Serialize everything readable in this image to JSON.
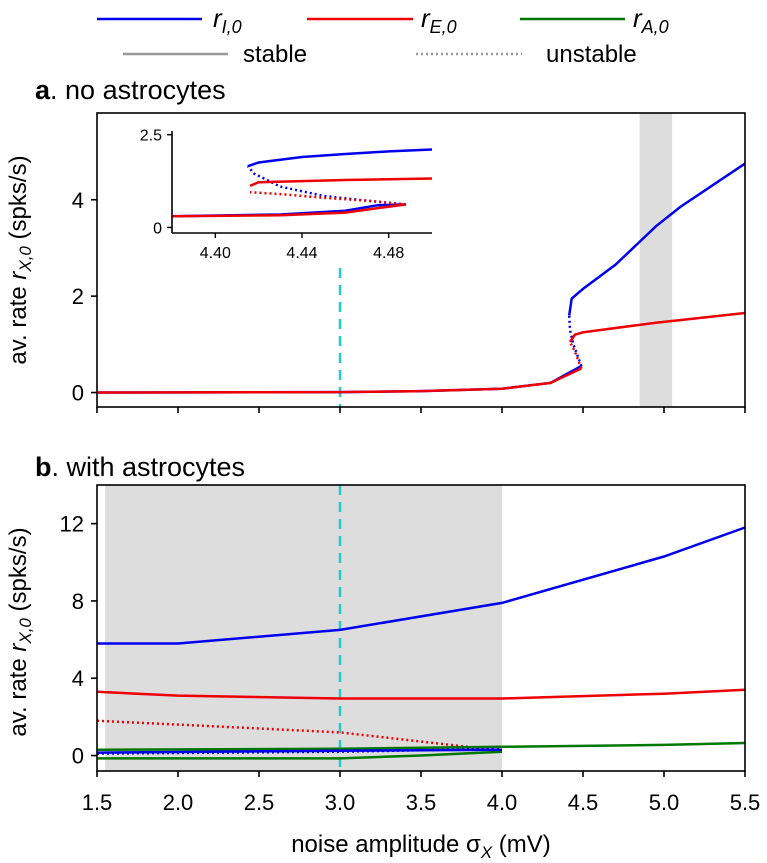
{
  "legend": {
    "items": [
      {
        "sym": "r",
        "sub": "I,0",
        "color": "#0000ee"
      },
      {
        "sym": "r",
        "sub": "E,0",
        "color": "#ee0000"
      },
      {
        "sym": "r",
        "sub": "A,0",
        "color": "#007700"
      }
    ],
    "stable": "stable",
    "unstable": "unstable"
  },
  "x_axis": {
    "label": "noise amplitude σ",
    "label_sub": "X",
    "label_unit": " (mV)",
    "ticks": [
      "1.5",
      "2.0",
      "2.5",
      "3.0",
      "3.5",
      "4.0",
      "4.5",
      "5.0",
      "5.5"
    ]
  },
  "y_axis": {
    "prefix": "av. rate ",
    "sym": "r",
    "sub": "X,0",
    "unit": " (spks/s)"
  },
  "chart_data": [
    {
      "id": "a",
      "type": "line",
      "panel_letter": "a",
      "title": ". no astrocytes",
      "xlim": [
        1.5,
        5.5
      ],
      "ylim": [
        -0.3,
        5.8
      ],
      "yticks": [
        "0",
        "2",
        "4"
      ],
      "highlight_band": [
        4.85,
        5.05
      ],
      "reference_x": 3.0,
      "series": [
        {
          "name": "r_I,0",
          "color": "#0000ee",
          "style": "solid",
          "points": [
            [
              1.5,
              0.0
            ],
            [
              3.0,
              0.01
            ],
            [
              3.5,
              0.03
            ],
            [
              4.0,
              0.08
            ],
            [
              4.3,
              0.2
            ],
            [
              4.49,
              0.55
            ]
          ]
        },
        {
          "name": "r_E,0",
          "color": "#ee0000",
          "style": "solid",
          "points": [
            [
              1.5,
              0.0
            ],
            [
              3.0,
              0.01
            ],
            [
              3.5,
              0.03
            ],
            [
              4.0,
              0.08
            ],
            [
              4.3,
              0.2
            ],
            [
              4.49,
              0.5
            ]
          ]
        },
        {
          "name": "r_I,0",
          "color": "#0000ee",
          "style": "dotted",
          "points": [
            [
              4.49,
              0.55
            ],
            [
              4.44,
              1.0
            ],
            [
              4.42,
              1.3
            ],
            [
              4.415,
              1.6
            ]
          ]
        },
        {
          "name": "r_E,0",
          "color": "#ee0000",
          "style": "dotted",
          "points": [
            [
              4.49,
              0.5
            ],
            [
              4.45,
              0.85
            ],
            [
              4.42,
              1.05
            ]
          ]
        },
        {
          "name": "r_I,0",
          "color": "#0000ee",
          "style": "solid",
          "points": [
            [
              4.415,
              1.6
            ],
            [
              4.43,
              1.95
            ],
            [
              4.5,
              2.15
            ],
            [
              4.7,
              2.65
            ],
            [
              4.95,
              3.45
            ],
            [
              5.1,
              3.85
            ],
            [
              5.5,
              4.75
            ]
          ]
        },
        {
          "name": "r_E,0",
          "color": "#ee0000",
          "style": "solid",
          "points": [
            [
              4.42,
              1.05
            ],
            [
              4.43,
              1.1
            ],
            [
              4.45,
              1.2
            ],
            [
              4.5,
              1.25
            ],
            [
              4.95,
              1.45
            ],
            [
              5.5,
              1.65
            ]
          ]
        }
      ],
      "inset": {
        "xlim": [
          4.38,
          4.5
        ],
        "ylim": [
          -0.15,
          2.6
        ],
        "xticks": [
          "4.40",
          "4.44",
          "4.48"
        ],
        "xtick_values": [
          4.4,
          4.44,
          4.48
        ],
        "yticks": [
          "0",
          "2.5"
        ],
        "ytick_values": [
          0,
          2.5
        ],
        "series": [
          {
            "name": "r_I,0",
            "color": "#0000ee",
            "style": "solid",
            "points": [
              [
                4.38,
                0.3
              ],
              [
                4.43,
                0.35
              ],
              [
                4.46,
                0.45
              ],
              [
                4.475,
                0.6
              ],
              [
                4.488,
                0.62
              ]
            ]
          },
          {
            "name": "r_E,0",
            "color": "#ee0000",
            "style": "solid",
            "points": [
              [
                4.38,
                0.3
              ],
              [
                4.43,
                0.33
              ],
              [
                4.46,
                0.4
              ],
              [
                4.475,
                0.52
              ],
              [
                4.488,
                0.62
              ]
            ]
          },
          {
            "name": "r_I,0",
            "color": "#0000ee",
            "style": "dotted",
            "points": [
              [
                4.488,
                0.62
              ],
              [
                4.47,
                0.72
              ],
              [
                4.45,
                0.85
              ],
              [
                4.43,
                1.1
              ],
              [
                4.418,
                1.45
              ],
              [
                4.415,
                1.65
              ]
            ]
          },
          {
            "name": "r_E,0",
            "color": "#ee0000",
            "style": "dotted",
            "points": [
              [
                4.488,
                0.62
              ],
              [
                4.47,
                0.72
              ],
              [
                4.45,
                0.8
              ],
              [
                4.43,
                0.9
              ],
              [
                4.416,
                0.95
              ]
            ]
          },
          {
            "name": "r_I,0",
            "color": "#0000ee",
            "style": "solid",
            "points": [
              [
                4.415,
                1.65
              ],
              [
                4.42,
                1.75
              ],
              [
                4.44,
                1.9
              ],
              [
                4.46,
                1.98
              ],
              [
                4.48,
                2.05
              ],
              [
                4.5,
                2.1
              ]
            ]
          },
          {
            "name": "r_E,0",
            "color": "#ee0000",
            "style": "solid",
            "points": [
              [
                4.416,
                1.12
              ],
              [
                4.42,
                1.22
              ],
              [
                4.44,
                1.25
              ],
              [
                4.46,
                1.28
              ],
              [
                4.48,
                1.3
              ],
              [
                4.5,
                1.32
              ]
            ]
          }
        ]
      }
    },
    {
      "id": "b",
      "type": "line",
      "panel_letter": "b",
      "title": ". with astrocytes",
      "xlim": [
        1.5,
        5.5
      ],
      "ylim": [
        -0.8,
        14.0
      ],
      "yticks": [
        "0",
        "4",
        "8",
        "12"
      ],
      "ytick_values": [
        0,
        4,
        8,
        12
      ],
      "highlight_band": [
        1.55,
        4.0
      ],
      "reference_x": 3.0,
      "series": [
        {
          "name": "r_I,0",
          "color": "#0000ee",
          "style": "solid",
          "points": [
            [
              1.5,
              5.8
            ],
            [
              2.0,
              5.8
            ],
            [
              3.0,
              6.5
            ],
            [
              4.0,
              7.9
            ],
            [
              5.0,
              10.3
            ],
            [
              5.5,
              11.8
            ]
          ]
        },
        {
          "name": "r_E,0",
          "color": "#ee0000",
          "style": "solid",
          "points": [
            [
              1.5,
              3.3
            ],
            [
              2.0,
              3.1
            ],
            [
              3.0,
              2.95
            ],
            [
              4.0,
              2.95
            ],
            [
              5.0,
              3.2
            ],
            [
              5.5,
              3.4
            ]
          ]
        },
        {
          "name": "r_E,0",
          "color": "#ee0000",
          "style": "dotted",
          "points": [
            [
              1.5,
              1.8
            ],
            [
              2.0,
              1.6
            ],
            [
              3.0,
              1.2
            ],
            [
              4.0,
              0.25
            ]
          ]
        },
        {
          "name": "r_A,0",
          "color": "#007700",
          "style": "solid",
          "points": [
            [
              1.5,
              0.3
            ],
            [
              3.0,
              0.35
            ],
            [
              4.0,
              0.45
            ],
            [
              5.0,
              0.55
            ],
            [
              5.5,
              0.65
            ]
          ]
        },
        {
          "name": "r_A,0",
          "color": "#007700",
          "style": "solid",
          "points": [
            [
              1.5,
              -0.15
            ],
            [
              3.0,
              -0.15
            ],
            [
              3.5,
              0.0
            ],
            [
              4.0,
              0.2
            ]
          ]
        },
        {
          "name": "r_I,0",
          "color": "#0000ee",
          "style": "dotted",
          "points": [
            [
              1.5,
              0.1
            ],
            [
              3.0,
              0.2
            ],
            [
              4.0,
              0.35
            ]
          ]
        },
        {
          "name": "r_I,0",
          "color": "#0000ee",
          "style": "solid",
          "points": [
            [
              1.5,
              0.15
            ],
            [
              3.0,
              0.25
            ],
            [
              4.0,
              0.3
            ]
          ]
        }
      ]
    }
  ]
}
